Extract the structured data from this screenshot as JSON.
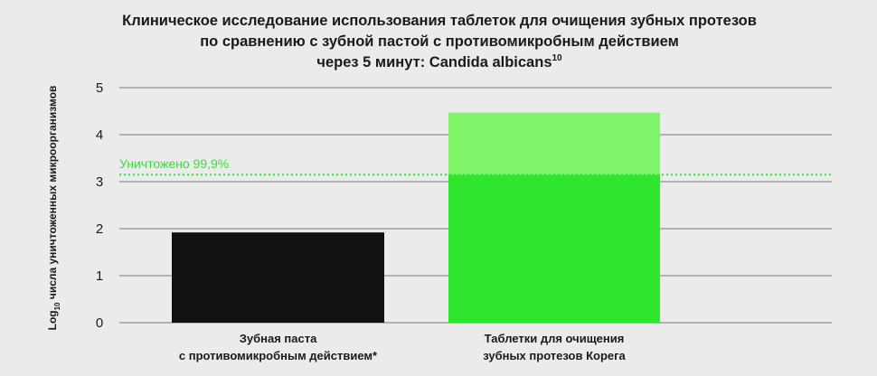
{
  "chart_data": {
    "type": "bar",
    "title_lines": [
      "Клиническое исследование использования таблеток для очищения зубных протезов",
      "по сравнению с зубной пастой с противомикробным действием",
      "через 5 минут: Candida albicans"
    ],
    "title_superscript": "10",
    "ylabel_prefix": "Log",
    "ylabel_subscript": "10",
    "ylabel_rest": " числа уничтоженных микроорганизмов",
    "ylim": [
      0,
      5
    ],
    "yticks": [
      0,
      1,
      2,
      3,
      4,
      5
    ],
    "grid": true,
    "categories": [
      [
        "Зубная паста",
        "с противомикробным действием*"
      ],
      [
        "Таблетки для очищения",
        "зубных протезов Корега"
      ]
    ],
    "values": [
      1.92,
      4.47
    ],
    "colors": {
      "bar_1": "#111111",
      "bar_2_lower": "#2ee62e",
      "bar_2_upper": "#80f56a",
      "threshold": "#2ee62e",
      "grid": "#7a7a7a"
    },
    "threshold": {
      "value": 3.15,
      "label": "Уничтожено 99,9%"
    }
  }
}
